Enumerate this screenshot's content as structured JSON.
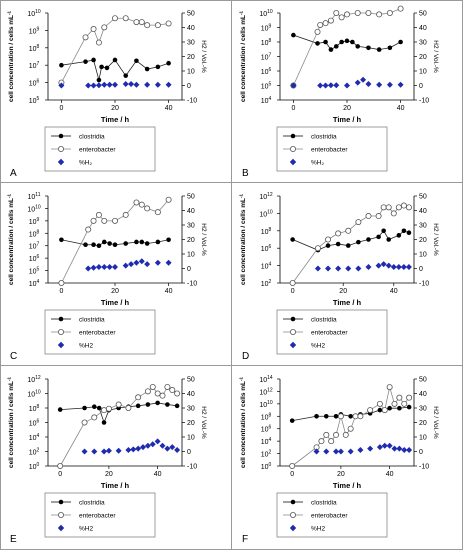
{
  "chart_data": [
    {
      "type": "line",
      "panel_label": "A",
      "xlabel": "Time / h",
      "ylabel_left": "cell concentration / cells mL",
      "ylabel_right": "H2 / Vol.-%",
      "x_ticks": [
        0,
        20,
        40
      ],
      "left_scale": "log",
      "left_ticks_exp": [
        5,
        6,
        7,
        8,
        9,
        10
      ],
      "right_ticks": [
        -10,
        0,
        10,
        20,
        30,
        40,
        50
      ],
      "xlim": [
        -5,
        45
      ],
      "legend": [
        "clostridia",
        "enterobacter",
        "%H₂"
      ],
      "series": [
        {
          "name": "clostridia",
          "axis": "left",
          "marker": "filled-circle",
          "x": [
            0,
            9,
            12,
            14,
            15,
            17,
            20,
            24,
            28,
            32,
            36,
            40
          ],
          "y": [
            10000000.0,
            16000000.0,
            20000000.0,
            1400000.0,
            8000000.0,
            7000000.0,
            20000000.0,
            2500000.0,
            18000000.0,
            6000000.0,
            8000000.0,
            13000000.0
          ]
        },
        {
          "name": "enterobacter",
          "axis": "left",
          "marker": "open-circle",
          "x": [
            0,
            9,
            12,
            14,
            16,
            20,
            24,
            28,
            30,
            32,
            36,
            40
          ],
          "y": [
            1000000.0,
            400000000.0,
            1200000000.0,
            200000000.0,
            1500000000.0,
            5000000000.0,
            5000000000.0,
            3000000000.0,
            3000000000.0,
            2000000000.0,
            2000000000.0,
            2500000000.0
          ]
        },
        {
          "name": "%H₂",
          "axis": "right",
          "marker": "diamond",
          "x": [
            0,
            10,
            12,
            14,
            16,
            18,
            20,
            24,
            26,
            28,
            32,
            36,
            40
          ],
          "y": [
            0,
            0,
            0,
            0.2,
            0.5,
            0.5,
            0.5,
            1,
            1,
            0.5,
            0.5,
            0.5,
            0.5
          ]
        }
      ]
    },
    {
      "type": "line",
      "panel_label": "B",
      "xlabel": "Time / h",
      "ylabel_left": "cell concentration / cells mL",
      "ylabel_right": "H2 / Vol.-%",
      "x_ticks": [
        0,
        20,
        40
      ],
      "left_scale": "log",
      "left_ticks_exp": [
        4,
        5,
        6,
        7,
        8,
        9,
        10
      ],
      "right_ticks": [
        -10,
        0,
        10,
        20,
        30,
        40,
        50
      ],
      "xlim": [
        -5,
        45
      ],
      "legend": [
        "clostridia",
        "enterobacter",
        "%H₂"
      ],
      "series": [
        {
          "name": "clostridia",
          "axis": "left",
          "marker": "filled-circle",
          "x": [
            0,
            9,
            12,
            14,
            16,
            18,
            20,
            22,
            24,
            28,
            32,
            36,
            40
          ],
          "y": [
            300000000.0,
            80000000.0,
            100000000.0,
            30000000.0,
            50000000.0,
            100000000.0,
            120000000.0,
            100000000.0,
            50000000.0,
            40000000.0,
            30000000.0,
            40000000.0,
            100000000.0
          ]
        },
        {
          "name": "enterobacter",
          "axis": "left",
          "marker": "open-circle",
          "x": [
            0,
            9,
            10,
            12,
            14,
            16,
            18,
            20,
            24,
            28,
            32,
            36,
            40
          ],
          "y": [
            100000.0,
            500000000.0,
            1500000000.0,
            2000000000.0,
            3000000000.0,
            10000000000.0,
            5000000000.0,
            8000000000.0,
            10000000000.0,
            10000000000.0,
            8000000000.0,
            10000000000.0,
            20000000000.0
          ]
        },
        {
          "name": "%H₂",
          "axis": "right",
          "marker": "diamond",
          "x": [
            0,
            10,
            12,
            14,
            16,
            20,
            24,
            26,
            28,
            32,
            36,
            40
          ],
          "y": [
            0,
            0,
            0,
            0.2,
            0.2,
            0,
            2,
            4,
            1,
            0.5,
            0.5,
            0.5
          ]
        }
      ]
    },
    {
      "type": "line",
      "panel_label": "C",
      "xlabel": "Time / h",
      "ylabel_left": "cell concentration / cells mL",
      "ylabel_right": "H2 / Vol.-%",
      "x_ticks": [
        0,
        20,
        40
      ],
      "left_scale": "log",
      "left_ticks_exp": [
        4,
        5,
        6,
        7,
        8,
        9,
        10,
        11
      ],
      "right_ticks": [
        -10,
        0,
        10,
        20,
        30,
        40,
        50
      ],
      "xlim": [
        -5,
        45
      ],
      "legend": [
        "clostridia",
        "enterobacter",
        "%H2"
      ],
      "series": [
        {
          "name": "clostridia",
          "axis": "left",
          "marker": "filled-circle",
          "x": [
            0,
            9,
            12,
            14,
            16,
            18,
            20,
            24,
            28,
            30,
            32,
            36,
            40
          ],
          "y": [
            30000000.0,
            12000000.0,
            12000000.0,
            10000000.0,
            20000000.0,
            15000000.0,
            12000000.0,
            15000000.0,
            20000000.0,
            20000000.0,
            15000000.0,
            20000000.0,
            30000000.0
          ]
        },
        {
          "name": "enterobacter",
          "axis": "left",
          "marker": "open-circle",
          "x": [
            0,
            10,
            12,
            14,
            16,
            20,
            24,
            28,
            30,
            32,
            36,
            40
          ],
          "y": [
            10000.0,
            200000000.0,
            1000000000.0,
            3000000000.0,
            1000000000.0,
            1000000000.0,
            3000000000.0,
            30000000000.0,
            20000000000.0,
            10000000000.0,
            5000000000.0,
            50000000000.0
          ]
        },
        {
          "name": "%H2",
          "axis": "right",
          "marker": "diamond",
          "x": [
            10,
            12,
            14,
            16,
            18,
            20,
            24,
            26,
            28,
            30,
            32,
            36,
            40
          ],
          "y": [
            0,
            0.5,
            1,
            1,
            1,
            1,
            2,
            3,
            4,
            5,
            3,
            4,
            4
          ]
        }
      ]
    },
    {
      "type": "line",
      "panel_label": "D",
      "xlabel": "Time / h",
      "ylabel_left": "cell concentration / cells mL",
      "ylabel_right": "H2 / Vol.-%",
      "x_ticks": [
        0,
        20,
        40
      ],
      "left_scale": "log",
      "left_ticks_exp": [
        2,
        4,
        6,
        8,
        10,
        12
      ],
      "right_ticks": [
        -10,
        0,
        10,
        20,
        30,
        40,
        50
      ],
      "xlim": [
        -5,
        48
      ],
      "legend": [
        "clostridia",
        "enterobacter",
        "%H2"
      ],
      "series": [
        {
          "name": "clostridia",
          "axis": "left",
          "marker": "filled-circle",
          "x": [
            0,
            10,
            14,
            18,
            22,
            26,
            30,
            34,
            36,
            38,
            42,
            44,
            46
          ],
          "y": [
            10000000.0,
            600000.0,
            2000000.0,
            3000000.0,
            2000000.0,
            5000000.0,
            10000000.0,
            20000000.0,
            100000000.0,
            10000000.0,
            30000000.0,
            100000000.0,
            60000000.0
          ]
        },
        {
          "name": "enterobacter",
          "axis": "left",
          "marker": "open-circle",
          "x": [
            0,
            10,
            14,
            18,
            22,
            26,
            30,
            34,
            36,
            38,
            40,
            42,
            44,
            46
          ],
          "y": [
            100.0,
            1000000.0,
            10000000.0,
            50000000.0,
            100000000.0,
            1000000000.0,
            5000000000.0,
            5000000000.0,
            50000000000.0,
            50000000000.0,
            10000000000.0,
            50000000000.0,
            80000000000.0,
            50000000000.0
          ]
        },
        {
          "name": "%H2",
          "axis": "right",
          "marker": "diamond",
          "x": [
            10,
            14,
            18,
            22,
            26,
            30,
            34,
            36,
            38,
            40,
            42,
            44,
            46
          ],
          "y": [
            0,
            0,
            0,
            0,
            0,
            1,
            2,
            3,
            2,
            1,
            1,
            1,
            1
          ]
        }
      ]
    },
    {
      "type": "line",
      "panel_label": "E",
      "xlabel": "Time / h",
      "ylabel_left": "cell concentration / cells mL",
      "ylabel_right": "H2 / Vol.-%",
      "x_ticks": [
        0,
        20,
        40
      ],
      "left_scale": "log",
      "left_ticks_exp": [
        0,
        2,
        4,
        6,
        8,
        10,
        12
      ],
      "right_ticks": [
        -10,
        0,
        10,
        20,
        30,
        40,
        50
      ],
      "xlim": [
        -5,
        50
      ],
      "legend": [
        "clostridia",
        "enterobacter",
        "%H2"
      ],
      "series": [
        {
          "name": "clostridia",
          "axis": "left",
          "marker": "filled-circle",
          "x": [
            0,
            10,
            14,
            16,
            18,
            20,
            24,
            28,
            32,
            36,
            40,
            44,
            48
          ],
          "y": [
            60000000.0,
            100000000.0,
            150000000.0,
            100000000.0,
            1000000.0,
            50000000.0,
            100000000.0,
            150000000.0,
            200000000.0,
            300000000.0,
            500000000.0,
            300000000.0,
            200000000.0
          ]
        },
        {
          "name": "enterobacter",
          "axis": "left",
          "marker": "open-circle",
          "x": [
            0,
            10,
            14,
            18,
            20,
            24,
            28,
            32,
            36,
            38,
            40,
            42,
            44,
            46,
            48
          ],
          "y": [
            1.0,
            1000000.0,
            5000000.0,
            50000000.0,
            80000000.0,
            300000000.0,
            100000000.0,
            3000000000.0,
            20000000000.0,
            80000000000.0,
            10000000000.0,
            5000000000.0,
            80000000000.0,
            30000000000.0,
            10000000000.0
          ]
        },
        {
          "name": "%H2",
          "axis": "right",
          "marker": "diamond",
          "x": [
            10,
            14,
            18,
            20,
            24,
            28,
            30,
            32,
            34,
            36,
            38,
            40,
            42,
            44,
            46,
            48
          ],
          "y": [
            0,
            0,
            0,
            0.5,
            0.5,
            1,
            1.5,
            2,
            3,
            4,
            5,
            7,
            4,
            2,
            3,
            1
          ]
        }
      ]
    },
    {
      "type": "line",
      "panel_label": "F",
      "xlabel": "Time / h",
      "ylabel_left": "cell concentration / cells mL",
      "ylabel_right": "H2 / Vol.-%",
      "x_ticks": [
        0,
        20,
        40
      ],
      "left_scale": "log",
      "left_ticks_exp": [
        0,
        2,
        4,
        6,
        8,
        10,
        12,
        14
      ],
      "right_ticks": [
        -10,
        0,
        10,
        20,
        30,
        40,
        50
      ],
      "xlim": [
        -5,
        50
      ],
      "legend": [
        "clostridia",
        "enterobacter",
        "%H2"
      ],
      "series": [
        {
          "name": "clostridia",
          "axis": "left",
          "marker": "filled-circle",
          "x": [
            0,
            10,
            14,
            18,
            20,
            24,
            28,
            32,
            36,
            40,
            44,
            48
          ],
          "y": [
            20000000.0,
            100000000.0,
            100000000.0,
            100000000.0,
            200000000.0,
            100000000.0,
            200000000.0,
            300000000.0,
            1000000000.0,
            2000000000.0,
            2000000000.0,
            3000000000.0
          ]
        },
        {
          "name": "enterobacter",
          "axis": "left",
          "marker": "open-circle",
          "x": [
            0,
            10,
            12,
            14,
            16,
            18,
            20,
            22,
            24,
            26,
            28,
            32,
            36,
            38,
            40,
            42,
            44,
            46,
            48
          ],
          "y": [
            1.0,
            1000.0,
            10000.0,
            100000.0,
            10000.0,
            100000.0,
            100000000.0,
            100000.0,
            1000000.0,
            100000000.0,
            100000000.0,
            1000000000.0,
            10000000000.0,
            1000000000.0,
            5000000000000.0,
            10000000000.0,
            100000000000.0,
            10000000000.0,
            100000000000.0
          ]
        },
        {
          "name": "%H2",
          "axis": "right",
          "marker": "diamond",
          "x": [
            10,
            14,
            18,
            20,
            24,
            28,
            32,
            36,
            38,
            40,
            42,
            44,
            46,
            48
          ],
          "y": [
            0,
            0,
            0,
            0,
            0,
            1,
            2,
            3,
            4,
            4,
            2,
            2,
            1,
            1
          ]
        }
      ]
    }
  ]
}
